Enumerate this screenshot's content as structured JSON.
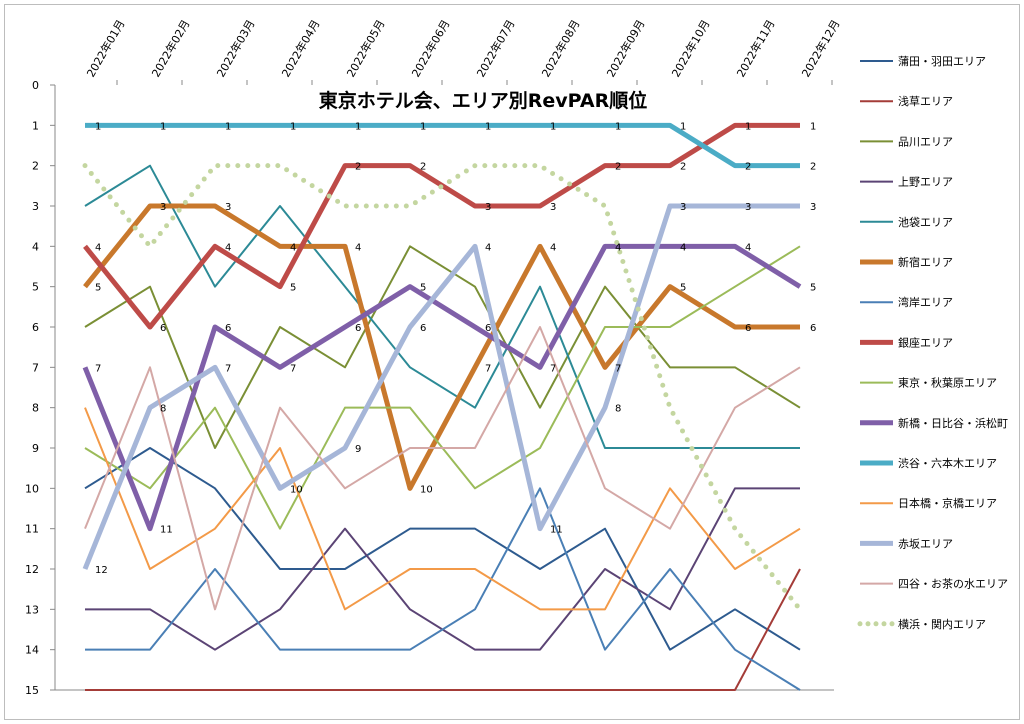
{
  "chart_data": {
    "type": "line",
    "title": "東京ホテル会、エリア別RevPAR順位",
    "categories": [
      "2022年01月",
      "2022年02月",
      "2022年03月",
      "2022年04月",
      "2022年05月",
      "2022年06月",
      "2022年07月",
      "2022年08月",
      "2022年09月",
      "2022年10月",
      "2022年11月",
      "2022年12月"
    ],
    "ylim": [
      0,
      15
    ],
    "y_reversed": true,
    "y_ticks": [
      0,
      1,
      2,
      3,
      4,
      5,
      6,
      7,
      8,
      9,
      10,
      11,
      12,
      13,
      14,
      15
    ],
    "legend_position": "right",
    "grid": false,
    "series": [
      {
        "name": "蒲田・羽田エリア",
        "color": "#2E5B8F",
        "width": 2,
        "dash": "",
        "labels": false,
        "values": [
          10,
          9,
          10,
          12,
          12,
          11,
          11,
          12,
          11,
          14,
          13,
          14
        ]
      },
      {
        "name": "浅草エリア",
        "color": "#A43C38",
        "width": 2,
        "dash": "",
        "labels": false,
        "values": [
          15,
          15,
          15,
          15,
          15,
          15,
          15,
          15,
          15,
          15,
          15,
          12
        ]
      },
      {
        "name": "品川エリア",
        "color": "#7A8F35",
        "width": 2,
        "dash": "",
        "labels": false,
        "values": [
          6,
          5,
          9,
          6,
          7,
          4,
          5,
          8,
          5,
          7,
          7,
          8
        ]
      },
      {
        "name": "上野エリア",
        "color": "#5B4475",
        "width": 2,
        "dash": "",
        "labels": false,
        "values": [
          13,
          13,
          14,
          13,
          11,
          13,
          14,
          14,
          12,
          13,
          10,
          10
        ]
      },
      {
        "name": "池袋エリア",
        "color": "#2C8A96",
        "width": 2,
        "dash": "",
        "labels": false,
        "values": [
          3,
          2,
          5,
          3,
          5,
          7,
          8,
          5,
          9,
          9,
          9,
          9
        ]
      },
      {
        "name": "新宿エリア",
        "color": "#C8782C",
        "width": 5,
        "dash": "",
        "labels": true,
        "values": [
          5,
          3,
          3,
          4,
          4,
          10,
          7,
          4,
          7,
          5,
          6,
          6
        ]
      },
      {
        "name": "湾岸エリア",
        "color": "#4A7FB5",
        "width": 2,
        "dash": "",
        "labels": false,
        "values": [
          14,
          14,
          12,
          14,
          14,
          14,
          13,
          10,
          14,
          12,
          14,
          15
        ]
      },
      {
        "name": "銀座エリア",
        "color": "#BE4B48",
        "width": 5,
        "dash": "",
        "labels": true,
        "values": [
          4,
          6,
          4,
          5,
          2,
          2,
          3,
          3,
          2,
          2,
          1,
          1
        ]
      },
      {
        "name": "東京・秋葉原エリア",
        "color": "#9BBB59",
        "width": 2,
        "dash": "",
        "labels": false,
        "values": [
          9,
          10,
          8,
          11,
          8,
          8,
          10,
          9,
          6,
          6,
          5,
          4
        ]
      },
      {
        "name": "新橋・日比谷・浜松町",
        "color": "#7F5FA8",
        "width": 5,
        "dash": "",
        "labels": true,
        "values": [
          7,
          11,
          6,
          7,
          6,
          5,
          6,
          7,
          4,
          4,
          4,
          5
        ]
      },
      {
        "name": "渋谷・六本木エリア",
        "color": "#4BACC6",
        "width": 5,
        "dash": "",
        "labels": true,
        "values": [
          1,
          1,
          1,
          1,
          1,
          1,
          1,
          1,
          1,
          1,
          2,
          2
        ]
      },
      {
        "name": "日本橋・京橋エリア",
        "color": "#F39A48",
        "width": 2,
        "dash": "",
        "labels": false,
        "values": [
          8,
          12,
          11,
          9,
          13,
          12,
          12,
          13,
          13,
          10,
          12,
          11
        ]
      },
      {
        "name": "赤坂エリア",
        "color": "#A6B6D8",
        "width": 5,
        "dash": "",
        "labels": true,
        "values": [
          12,
          8,
          7,
          10,
          9,
          6,
          4,
          11,
          8,
          3,
          3,
          3
        ]
      },
      {
        "name": "四谷・お茶の水エリア",
        "color": "#D4A8A6",
        "width": 2,
        "dash": "",
        "labels": false,
        "values": [
          11,
          7,
          13,
          8,
          10,
          9,
          9,
          6,
          10,
          11,
          8,
          7
        ]
      },
      {
        "name": "横浜・関内エリア",
        "color": "#C4D6A0",
        "width": 5,
        "dash": "dot",
        "labels": false,
        "values": [
          2,
          4,
          2,
          2,
          3,
          3,
          2,
          2,
          3,
          8,
          11,
          13
        ]
      }
    ]
  }
}
